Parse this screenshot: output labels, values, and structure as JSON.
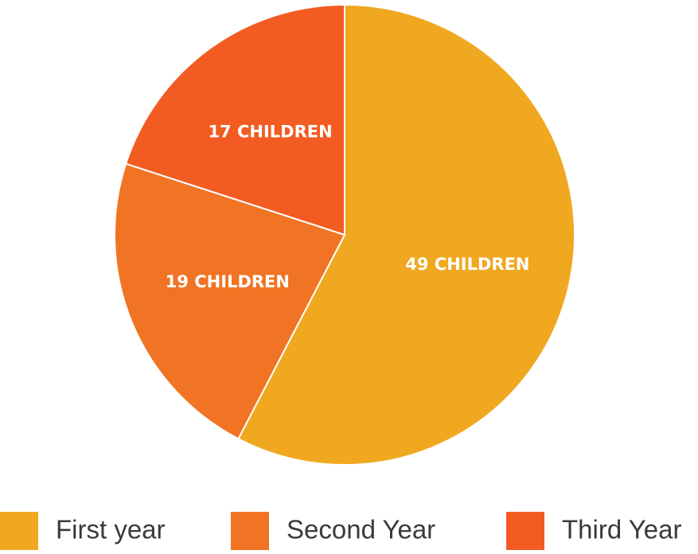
{
  "chart_data": {
    "type": "pie",
    "categories": [
      "First year",
      "Second Year",
      "Third Year"
    ],
    "values": [
      49,
      19,
      17
    ],
    "value_labels": [
      "49 CHILDREN",
      "19 CHILDREN",
      "17 CHILDREN"
    ],
    "colors": [
      "#f0a820",
      "#f07424",
      "#f25c22"
    ],
    "legend": "bottom"
  }
}
